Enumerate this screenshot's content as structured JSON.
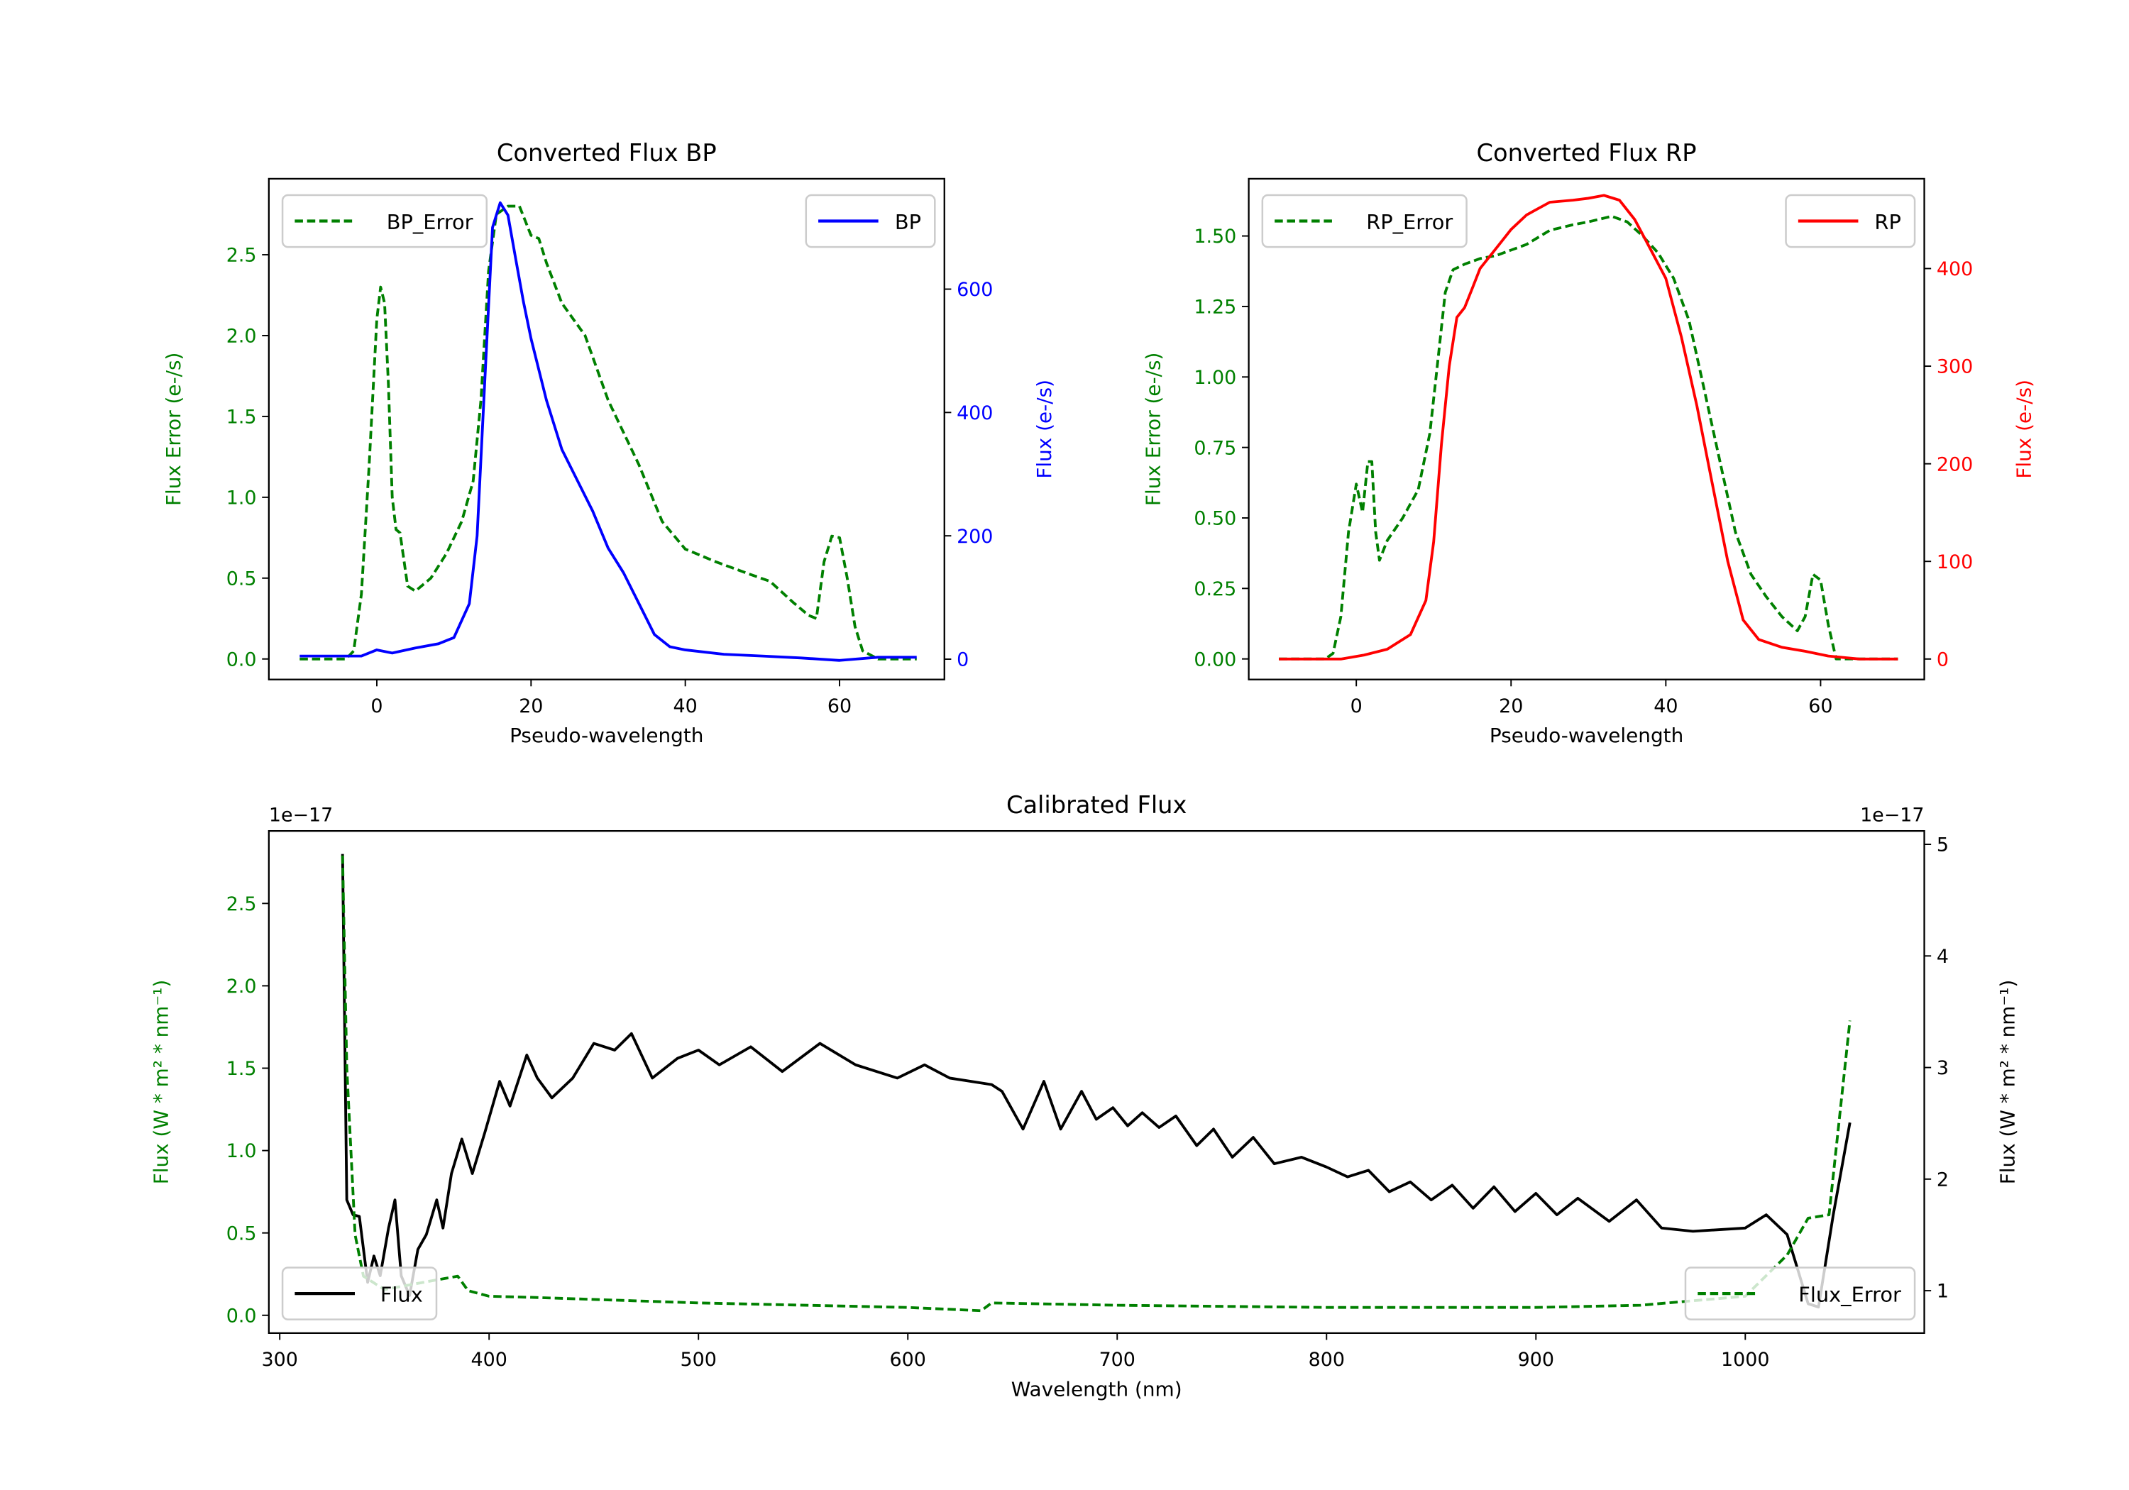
{
  "chart_data": [
    {
      "id": "bp",
      "type": "line",
      "title": "Converted Flux BP",
      "xlabel": "Pseudo-wavelength",
      "ylabel_left": "Flux Error (e-/s)",
      "ylabel_right": "Flux (e-/s)",
      "xlim": [
        -14,
        73.6
      ],
      "ylim_left": [
        -0.127,
        2.97
      ],
      "ylim_right": [
        -33,
        779
      ],
      "xticks": [
        0,
        20,
        40,
        60
      ],
      "yticks_left": [
        "0.0",
        "0.5",
        "1.0",
        "1.5",
        "2.0",
        "2.5"
      ],
      "yticks_right": [
        "0",
        "200",
        "400",
        "600"
      ],
      "left_color": "#008000",
      "right_color": "#0000ff",
      "series": [
        {
          "name": "BP_Error",
          "axis": "left",
          "color": "#008000",
          "dash": true,
          "legend": "upper left",
          "x": [
            -10,
            -4,
            -3,
            -2,
            -1,
            0,
            0.5,
            1,
            1.5,
            2,
            2.5,
            3,
            4,
            5,
            7,
            9,
            11,
            12.5,
            13.5,
            14.5,
            15.5,
            17,
            18.5,
            20,
            21,
            22,
            24,
            27,
            30,
            34,
            37,
            40,
            44,
            48,
            51,
            54,
            56,
            57,
            58,
            59,
            60,
            61,
            62,
            63,
            65,
            70
          ],
          "y": [
            0,
            0,
            0.05,
            0.4,
            1.2,
            2.1,
            2.3,
            2.2,
            1.7,
            1.0,
            0.8,
            0.78,
            0.45,
            0.42,
            0.5,
            0.65,
            0.85,
            1.1,
            1.6,
            2.4,
            2.75,
            2.8,
            2.8,
            2.62,
            2.6,
            2.45,
            2.2,
            2.0,
            1.6,
            1.2,
            0.85,
            0.68,
            0.6,
            0.53,
            0.48,
            0.35,
            0.27,
            0.25,
            0.6,
            0.76,
            0.75,
            0.5,
            0.2,
            0.05,
            0,
            0
          ]
        },
        {
          "name": "BP",
          "axis": "right",
          "color": "#0000ff",
          "dash": false,
          "legend": "upper right",
          "x": [
            -10,
            -2,
            0,
            2,
            5,
            8,
            10,
            12,
            13,
            14,
            15,
            16,
            17,
            18,
            19,
            20,
            22,
            24,
            26,
            28,
            30,
            32,
            34,
            36,
            38,
            40,
            45,
            50,
            55,
            60,
            65,
            70
          ],
          "y": [
            5,
            5,
            15,
            10,
            18,
            25,
            35,
            90,
            200,
            450,
            700,
            740,
            720,
            650,
            580,
            520,
            420,
            340,
            290,
            240,
            180,
            140,
            90,
            40,
            20,
            15,
            8,
            5,
            2,
            -2,
            3,
            3
          ]
        }
      ]
    },
    {
      "id": "rp",
      "type": "line",
      "title": "Converted Flux RP",
      "xlabel": "Pseudo-wavelength",
      "ylabel_left": "Flux Error (e-/s)",
      "ylabel_right": "Flux (e-/s)",
      "xlim": [
        -13.9,
        73.4
      ],
      "ylim_left": [
        -0.073,
        1.703
      ],
      "ylim_right": [
        -21,
        492
      ],
      "xticks": [
        0,
        20,
        40,
        60
      ],
      "yticks_left": [
        "0.00",
        "0.25",
        "0.50",
        "0.75",
        "1.00",
        "1.25",
        "1.50"
      ],
      "yticks_right": [
        "0",
        "100",
        "200",
        "300",
        "400"
      ],
      "left_color": "#008000",
      "right_color": "#ff0000",
      "series": [
        {
          "name": "RP_Error",
          "axis": "left",
          "color": "#008000",
          "dash": true,
          "legend": "upper left",
          "x": [
            -10,
            -4,
            -3,
            -2,
            -1,
            0,
            0.8,
            1.5,
            2,
            2.5,
            3,
            4,
            6,
            8,
            9.5,
            10.5,
            11.5,
            12.5,
            14,
            16,
            18,
            20,
            22,
            25,
            28,
            30,
            33,
            35,
            37,
            39,
            41,
            43,
            45,
            47,
            49,
            51,
            53,
            55,
            57,
            58,
            59,
            60,
            61,
            62,
            64,
            70
          ],
          "y": [
            0,
            0,
            0.02,
            0.15,
            0.45,
            0.62,
            0.52,
            0.7,
            0.7,
            0.45,
            0.35,
            0.42,
            0.5,
            0.6,
            0.8,
            1.05,
            1.3,
            1.38,
            1.4,
            1.42,
            1.43,
            1.45,
            1.47,
            1.52,
            1.54,
            1.55,
            1.57,
            1.55,
            1.5,
            1.44,
            1.35,
            1.2,
            0.95,
            0.7,
            0.45,
            0.3,
            0.22,
            0.15,
            0.1,
            0.15,
            0.3,
            0.28,
            0.12,
            0,
            0,
            0
          ]
        },
        {
          "name": "RP",
          "axis": "right",
          "color": "#ff0000",
          "dash": false,
          "legend": "upper right",
          "x": [
            -10,
            -2,
            1,
            4,
            7,
            9,
            10,
            11,
            12,
            13,
            14,
            15,
            16,
            18,
            20,
            22,
            25,
            28,
            30,
            32,
            34,
            36,
            38,
            40,
            42,
            44,
            46,
            48,
            50,
            52,
            55,
            58,
            61,
            65,
            70
          ],
          "y": [
            0,
            0,
            4,
            10,
            25,
            60,
            120,
            220,
            300,
            350,
            360,
            380,
            400,
            420,
            440,
            455,
            468,
            470,
            472,
            475,
            470,
            450,
            420,
            390,
            330,
            260,
            180,
            100,
            40,
            20,
            12,
            8,
            3,
            0,
            0
          ]
        }
      ]
    },
    {
      "id": "cal",
      "type": "line",
      "title": "Calibrated Flux",
      "xlabel": "Wavelength (nm)",
      "ylabel_left": "Flux (W * m² * nm⁻¹)",
      "ylabel_right": "Flux (W * m² * nm⁻¹)",
      "offset_left": "1e−17",
      "offset_right": "1e−17",
      "xlim": [
        294.8,
        1085.5
      ],
      "ylim_left": [
        -0.108,
        2.94
      ],
      "ylim_right": [
        0.62,
        5.12
      ],
      "xticks": [
        300,
        400,
        500,
        600,
        700,
        800,
        900,
        1000
      ],
      "yticks_left": [
        "0.0",
        "0.5",
        "1.0",
        "1.5",
        "2.0",
        "2.5"
      ],
      "yticks_right": [
        "1",
        "2",
        "3",
        "4",
        "5"
      ],
      "left_color": "#008000",
      "right_color": "#000000",
      "series": [
        {
          "name": "Flux",
          "axis": "left",
          "color": "#000000",
          "dash": false,
          "legend": "lower left",
          "x": [
            330,
            332,
            335,
            338,
            342,
            345,
            348,
            352,
            355,
            358,
            362,
            366,
            370,
            375,
            378,
            382,
            387,
            392,
            398,
            405,
            410,
            418,
            423,
            430,
            440,
            450,
            460,
            468,
            478,
            490,
            500,
            510,
            525,
            540,
            558,
            575,
            595,
            608,
            620,
            640,
            645,
            655,
            665,
            673,
            683,
            690,
            698,
            705,
            712,
            720,
            728,
            738,
            746,
            755,
            765,
            775,
            788,
            800,
            810,
            820,
            830,
            840,
            850,
            860,
            870,
            880,
            890,
            900,
            910,
            920,
            935,
            948,
            960,
            975,
            1000,
            1010,
            1020,
            1030,
            1035,
            1042,
            1050
          ],
          "y": [
            2.8,
            0.7,
            0.61,
            0.6,
            0.2,
            0.36,
            0.24,
            0.53,
            0.7,
            0.24,
            0.12,
            0.4,
            0.49,
            0.7,
            0.53,
            0.86,
            1.07,
            0.86,
            1.11,
            1.42,
            1.27,
            1.58,
            1.44,
            1.32,
            1.44,
            1.65,
            1.61,
            1.71,
            1.44,
            1.56,
            1.61,
            1.52,
            1.63,
            1.48,
            1.65,
            1.52,
            1.44,
            1.52,
            1.44,
            1.4,
            1.36,
            1.13,
            1.42,
            1.13,
            1.36,
            1.19,
            1.26,
            1.15,
            1.23,
            1.14,
            1.21,
            1.03,
            1.13,
            0.96,
            1.08,
            0.92,
            0.96,
            0.9,
            0.84,
            0.88,
            0.75,
            0.81,
            0.7,
            0.79,
            0.65,
            0.78,
            0.63,
            0.74,
            0.61,
            0.71,
            0.57,
            0.7,
            0.53,
            0.51,
            0.53,
            0.61,
            0.49,
            0.07,
            0.05,
            0.61,
            1.17
          ]
        },
        {
          "name": "Flux_Error",
          "axis": "right",
          "color": "#008000",
          "dash": true,
          "legend": "lower right",
          "x": [
            330,
            332,
            336,
            340,
            350,
            370,
            385,
            390,
            400,
            420,
            500,
            600,
            635,
            640,
            700,
            800,
            900,
            950,
            1000,
            1020,
            1030,
            1040,
            1050
          ],
          "y": [
            4.9,
            3.0,
            1.5,
            1.13,
            1.01,
            1.08,
            1.13,
            1.0,
            0.95,
            0.94,
            0.89,
            0.85,
            0.82,
            0.89,
            0.87,
            0.85,
            0.85,
            0.87,
            0.95,
            1.32,
            1.65,
            1.68,
            3.42
          ]
        }
      ]
    }
  ]
}
